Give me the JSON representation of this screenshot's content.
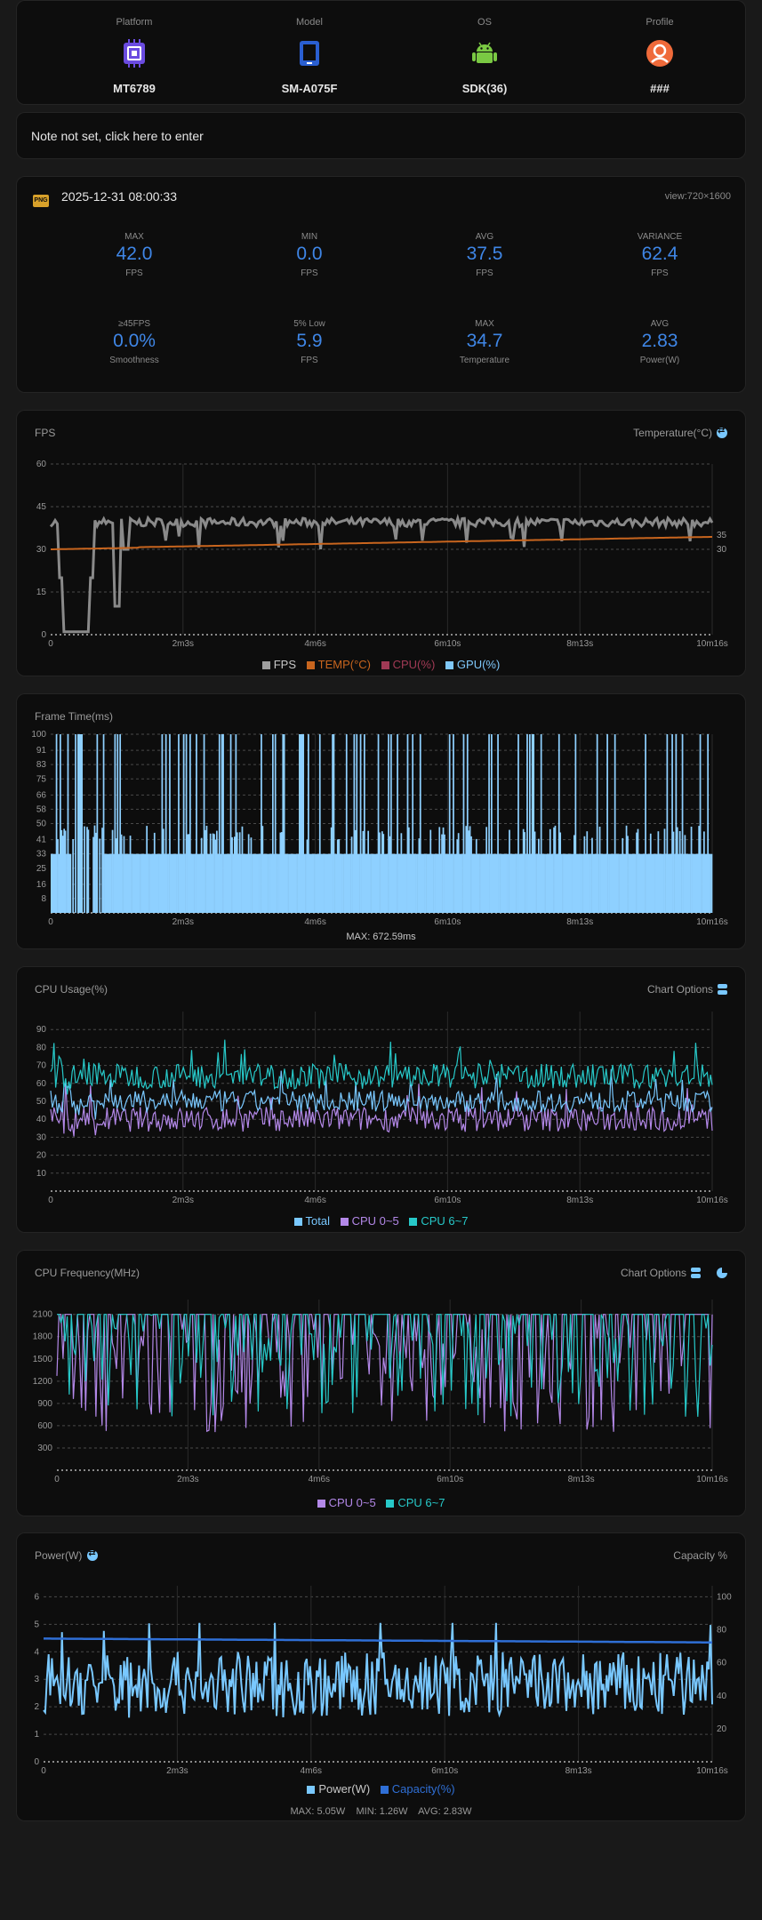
{
  "device": {
    "columns": [
      {
        "label": "Platform",
        "value": "MT6789",
        "icon": "chip-icon"
      },
      {
        "label": "Model",
        "value": "SM-A075F",
        "icon": "phone-icon"
      },
      {
        "label": "OS",
        "value": "SDK(36)",
        "icon": "android-icon"
      },
      {
        "label": "Profile",
        "value": "###",
        "icon": "profile-icon"
      }
    ]
  },
  "note": {
    "text": "Note not set, click here to enter"
  },
  "summary": {
    "badge": "PNG",
    "datetime": "2025-12-31 08:00:33",
    "view": "view:720×1600",
    "stats": [
      {
        "label": "MAX",
        "value": "42.0",
        "unit": "FPS"
      },
      {
        "label": "MIN",
        "value": "0.0",
        "unit": "FPS"
      },
      {
        "label": "AVG",
        "value": "37.5",
        "unit": "FPS"
      },
      {
        "label": "VARIANCE",
        "value": "62.4",
        "unit": "FPS"
      },
      {
        "label": "≥45FPS",
        "value": "0.0%",
        "unit": "Smoothness"
      },
      {
        "label": "5% Low",
        "value": "5.9",
        "unit": "FPS"
      },
      {
        "label": "MAX",
        "value": "34.7",
        "unit": "Temperature"
      },
      {
        "label": "AVG",
        "value": "2.83",
        "unit": "Power(W)"
      }
    ]
  },
  "x_ticks": [
    "0",
    "2m3s",
    "4m6s",
    "6m10s",
    "8m13s",
    "10m16s"
  ],
  "fps_card": {
    "title": "FPS",
    "right": "Temperature(°C)",
    "legend": [
      {
        "label": "FPS",
        "color": "#9e9e9e"
      },
      {
        "label": "TEMP(°C)",
        "color": "#c8651e"
      },
      {
        "label": "CPU(%)",
        "color": "#a03a55"
      },
      {
        "label": "GPU(%)",
        "color": "#7fc8fa"
      }
    ]
  },
  "frame_card": {
    "title": "Frame Time(ms)",
    "max": "MAX: 672.59ms"
  },
  "cpu_usage_card": {
    "title": "CPU Usage(%)",
    "right": "Chart Options",
    "legend": [
      {
        "label": "Total",
        "color": "#79c8ff"
      },
      {
        "label": "CPU 0~5",
        "color": "#b388e8"
      },
      {
        "label": "CPU 6~7",
        "color": "#27c9c9"
      }
    ]
  },
  "cpu_freq_card": {
    "title": "CPU Frequency(MHz)",
    "right": "Chart Options",
    "legend": [
      {
        "label": "CPU 0~5",
        "color": "#b388e8"
      },
      {
        "label": "CPU 6~7",
        "color": "#27c9c9"
      }
    ]
  },
  "power_card": {
    "title": "Power(W)",
    "right": "Capacity %",
    "legend": [
      {
        "label": "Power(W)",
        "color": "#79c8ff"
      },
      {
        "label": "Capacity(%)",
        "color": "#2f6fd6"
      }
    ],
    "stats": "MAX: 5.05W    MIN: 1.26W    AVG: 2.83W"
  },
  "chart_data": [
    {
      "type": "line",
      "title": "FPS",
      "ylabel": "",
      "ylim": [
        0,
        60
      ],
      "yticks": [
        15,
        30,
        45,
        60
      ],
      "y2label": "Temperature(°C)",
      "y2ticks": [
        30,
        35
      ],
      "x": [
        "0",
        "2m3s",
        "4m6s",
        "6m10s",
        "8m13s",
        "10m16s"
      ],
      "series": [
        {
          "name": "FPS",
          "approx": "mostly 38-40, dips to 0 near start (~0-30s), drops near 1m"
        },
        {
          "name": "TEMP(°C)",
          "start": 30,
          "end": 34.7
        }
      ]
    },
    {
      "type": "bar",
      "title": "Frame Time(ms)",
      "yticks": [
        8,
        16,
        25,
        33,
        41,
        50,
        58,
        66,
        75,
        83,
        91,
        100
      ],
      "ylim": [
        0,
        100
      ],
      "approx": "mostly ~33ms, spikes to 100, MAX 672.59ms"
    },
    {
      "type": "line",
      "title": "CPU Usage(%)",
      "ylim": [
        0,
        100
      ],
      "yticks": [
        10,
        20,
        30,
        40,
        50,
        60,
        70,
        80,
        90
      ],
      "series": [
        {
          "name": "Total",
          "approx": "~50"
        },
        {
          "name": "CPU 0~5",
          "approx": "~40"
        },
        {
          "name": "CPU 6~7",
          "approx": "~65"
        }
      ]
    },
    {
      "type": "line",
      "title": "CPU Frequency(MHz)",
      "yticks": [
        300,
        600,
        900,
        1200,
        1500,
        1800,
        2100
      ],
      "series": [
        {
          "name": "CPU 0~5",
          "approx": "mostly 2100 with drops to 500"
        },
        {
          "name": "CPU 6~7",
          "approx": "mostly 2100 with drops to 900"
        }
      ]
    },
    {
      "type": "line",
      "title": "Power(W)",
      "ylim": [
        0,
        6
      ],
      "yticks": [
        1,
        2,
        3,
        4,
        5,
        6
      ],
      "y2label": "Capacity %",
      "y2ticks": [
        20,
        40,
        60,
        80,
        100
      ],
      "series": [
        {
          "name": "Power(W)",
          "approx": "1.26-5.05, avg 2.83"
        },
        {
          "name": "Capacity(%)",
          "start": 80,
          "end": 78
        }
      ]
    }
  ]
}
